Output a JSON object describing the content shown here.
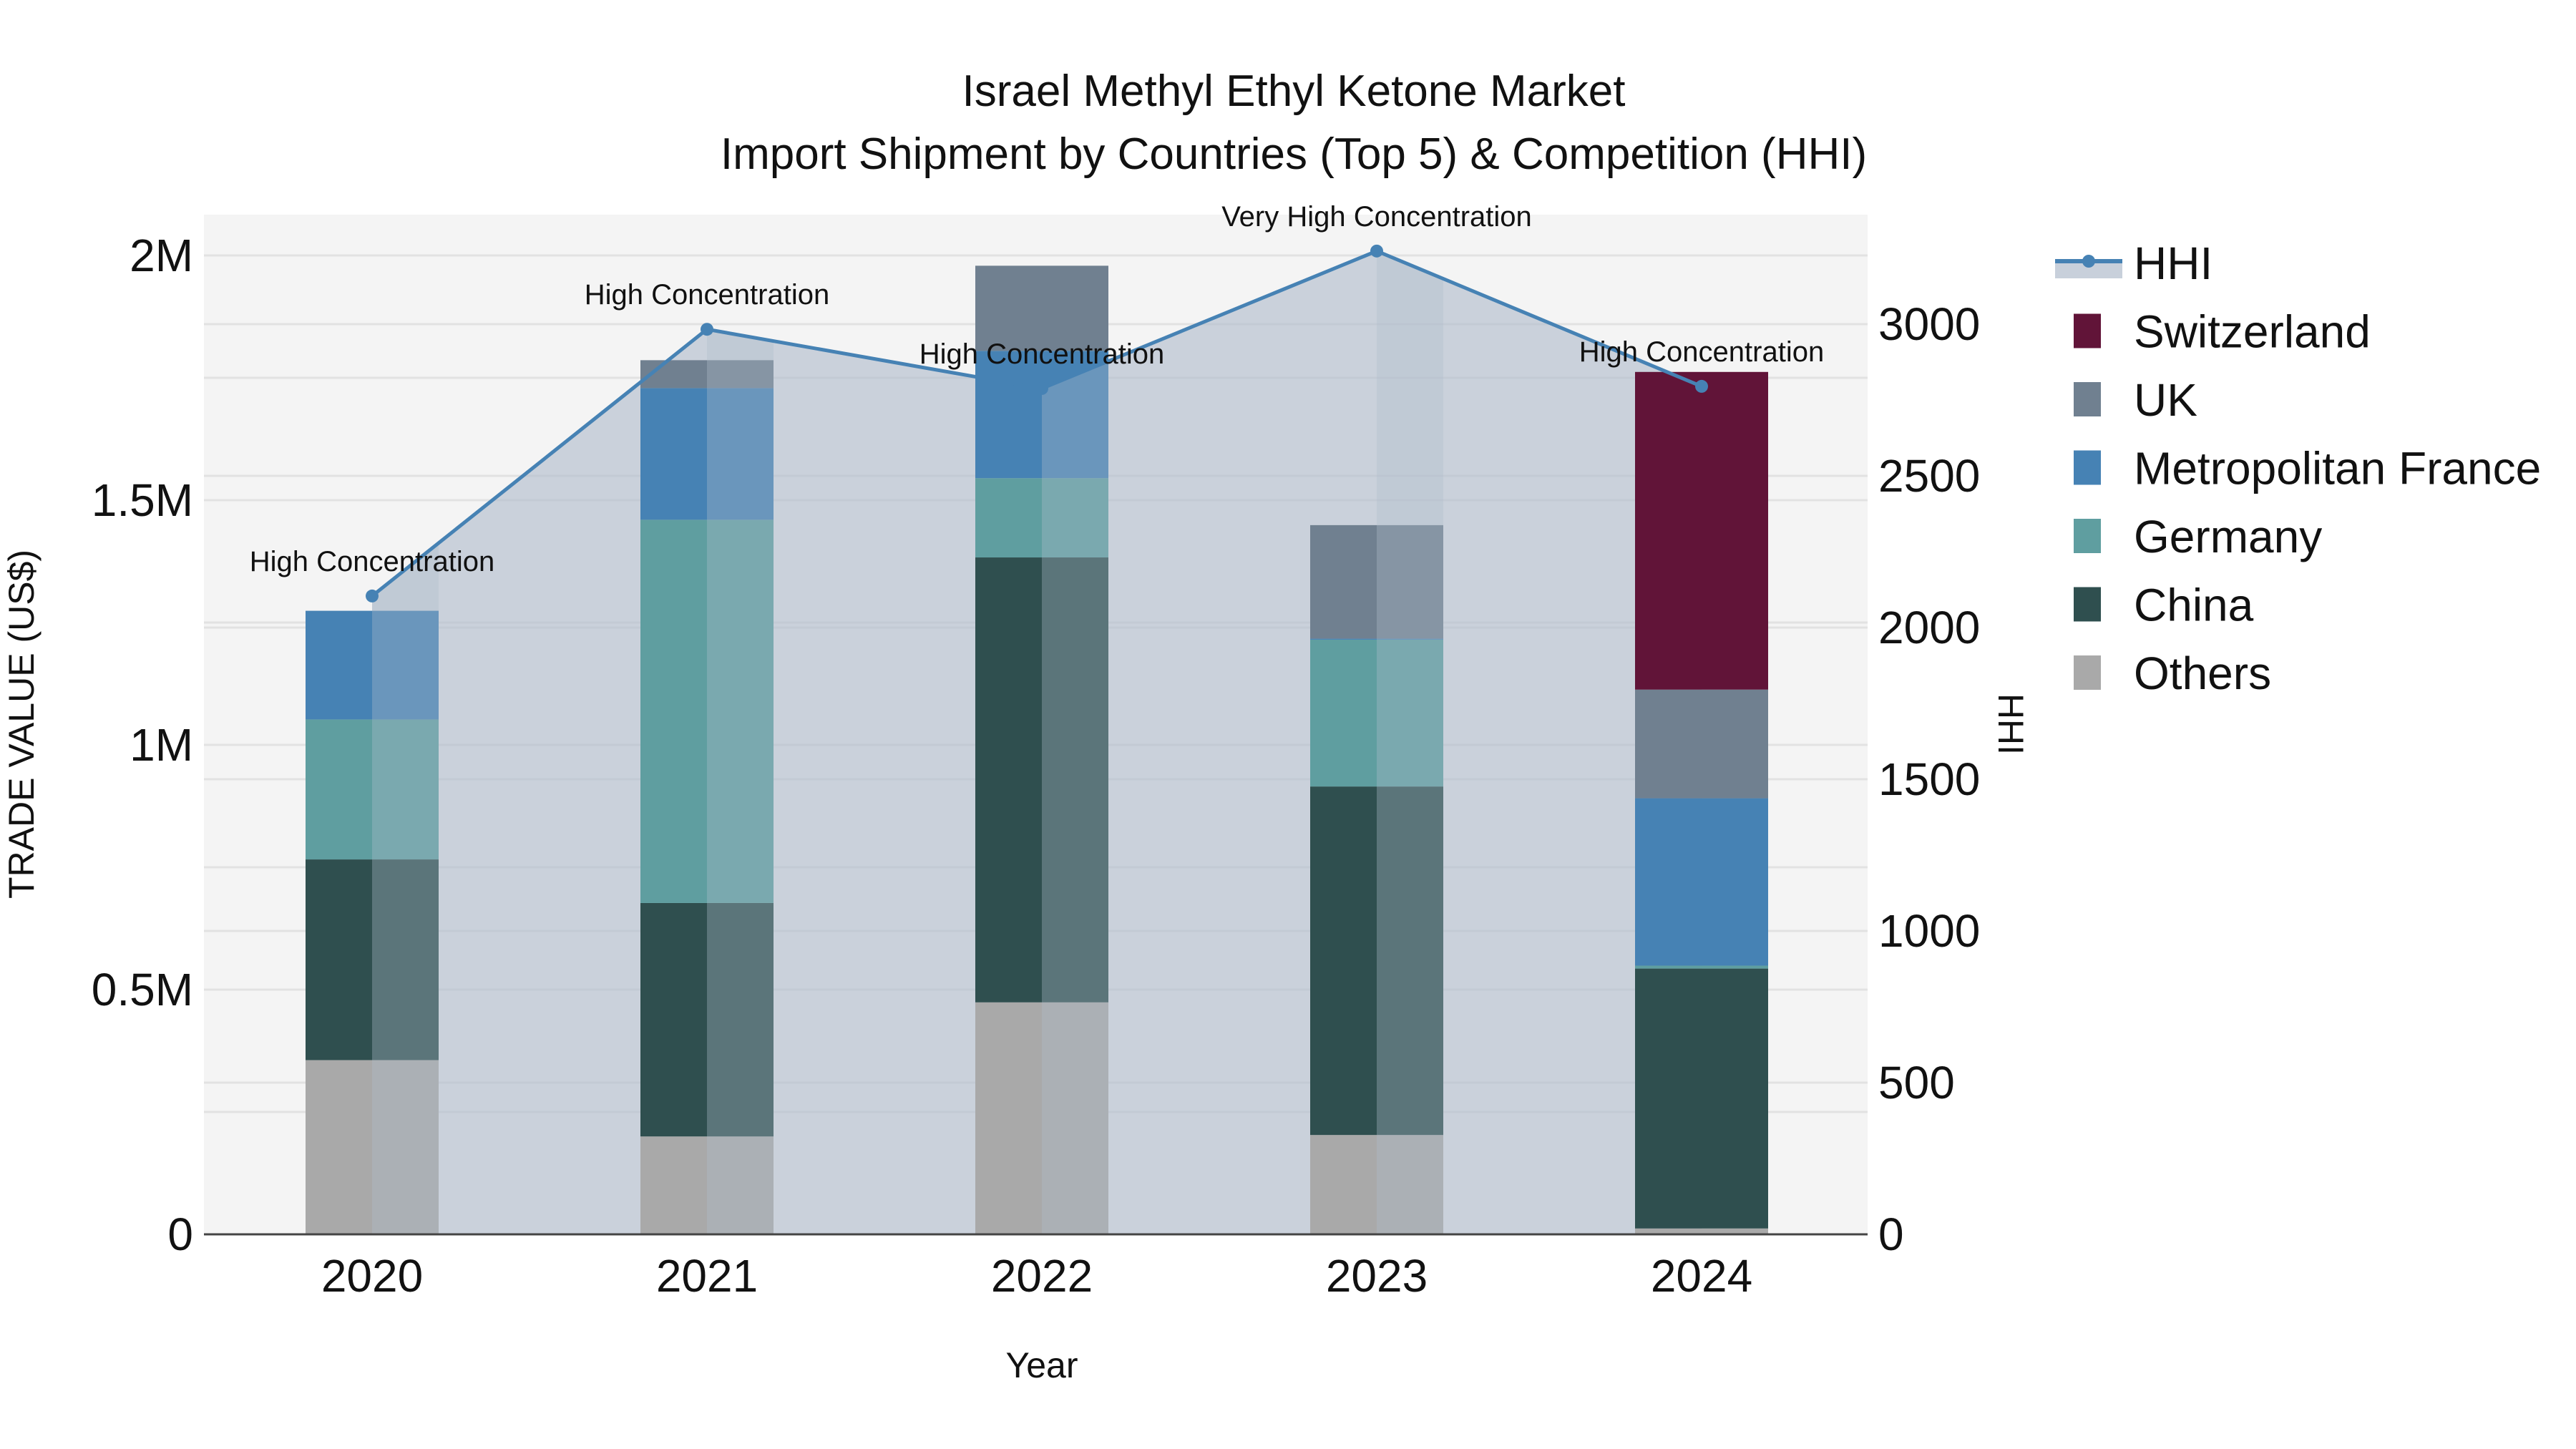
{
  "title": {
    "line1": "Israel Methyl Ethyl Ketone Market",
    "line2": "Import Shipment by Countries (Top 5) & Competition (HHI)"
  },
  "axes": {
    "x_label": "Year",
    "y_left_label": "TRADE VALUE (US$)",
    "y_right_label": "HHI",
    "y_left_ticks": [
      "0",
      "0.5M",
      "1M",
      "1.5M",
      "2M"
    ],
    "y_right_ticks": [
      "0",
      "500",
      "1000",
      "1500",
      "2000",
      "2500",
      "3000"
    ],
    "x_ticks": [
      "2020",
      "2021",
      "2022",
      "2023",
      "2024"
    ]
  },
  "legend": {
    "items": [
      {
        "label": "HHI",
        "type": "line",
        "color": "#4682B4"
      },
      {
        "label": "Switzerland",
        "type": "bar",
        "color": "#611438"
      },
      {
        "label": "UK",
        "type": "bar",
        "color": "#708090"
      },
      {
        "label": "Metropolitan France",
        "type": "bar",
        "color": "#4682B4"
      },
      {
        "label": "Germany",
        "type": "bar",
        "color": "#5F9EA0"
      },
      {
        "label": "China",
        "type": "bar",
        "color": "#2F4F4F"
      },
      {
        "label": "Others",
        "type": "bar",
        "color": "#A9A9A9"
      }
    ]
  },
  "annotations": [
    {
      "year": "2020",
      "text": "High Concentration"
    },
    {
      "year": "2021",
      "text": "High Concentration"
    },
    {
      "year": "2022",
      "text": "High Concentration"
    },
    {
      "year": "2023",
      "text": "Very High Concentration"
    },
    {
      "year": "2024",
      "text": "High Concentration"
    }
  ],
  "colors": {
    "plot_bg": "#F4F4F4",
    "grid": "#E2E2E2",
    "hhi_line": "#4682B4",
    "hhi_fill": "rgba(176,188,204,0.6)"
  },
  "chart_data": {
    "type": "bar",
    "title": "Israel Methyl Ethyl Ketone Market — Import Shipment by Countries (Top 5) & Competition (HHI)",
    "xlabel": "Year",
    "ylabel": "TRADE VALUE (US$)",
    "y2label": "HHI",
    "categories": [
      "2020",
      "2021",
      "2022",
      "2023",
      "2024"
    ],
    "stacked": true,
    "ylim": [
      0,
      2080000
    ],
    "y2lim": [
      0,
      3370
    ],
    "series": [
      {
        "name": "Others",
        "color": "#A9A9A9",
        "values": [
          356000,
          200000,
          474000,
          203000,
          12000
        ]
      },
      {
        "name": "China",
        "color": "#2F4F4F",
        "values": [
          410000,
          477000,
          909000,
          712000,
          531000
        ]
      },
      {
        "name": "Germany",
        "color": "#5F9EA0",
        "values": [
          286000,
          783000,
          162000,
          300000,
          6000
        ]
      },
      {
        "name": "Metropolitan France",
        "color": "#4682B4",
        "values": [
          222000,
          269000,
          260000,
          2000,
          342000
        ]
      },
      {
        "name": "UK",
        "color": "#708090",
        "values": [
          0,
          57000,
          174000,
          232000,
          222000
        ]
      },
      {
        "name": "Switzerland",
        "color": "#611438",
        "values": [
          0,
          0,
          0,
          0,
          649000
        ]
      }
    ],
    "line_series": {
      "name": "HHI",
      "axis": "right",
      "color": "#4682B4",
      "values": [
        2104,
        2983,
        2788,
        3241,
        2795
      ],
      "labels": [
        "High Concentration",
        "High Concentration",
        "High Concentration",
        "Very High Concentration",
        "High Concentration"
      ]
    },
    "legend_position": "right",
    "grid": true
  }
}
